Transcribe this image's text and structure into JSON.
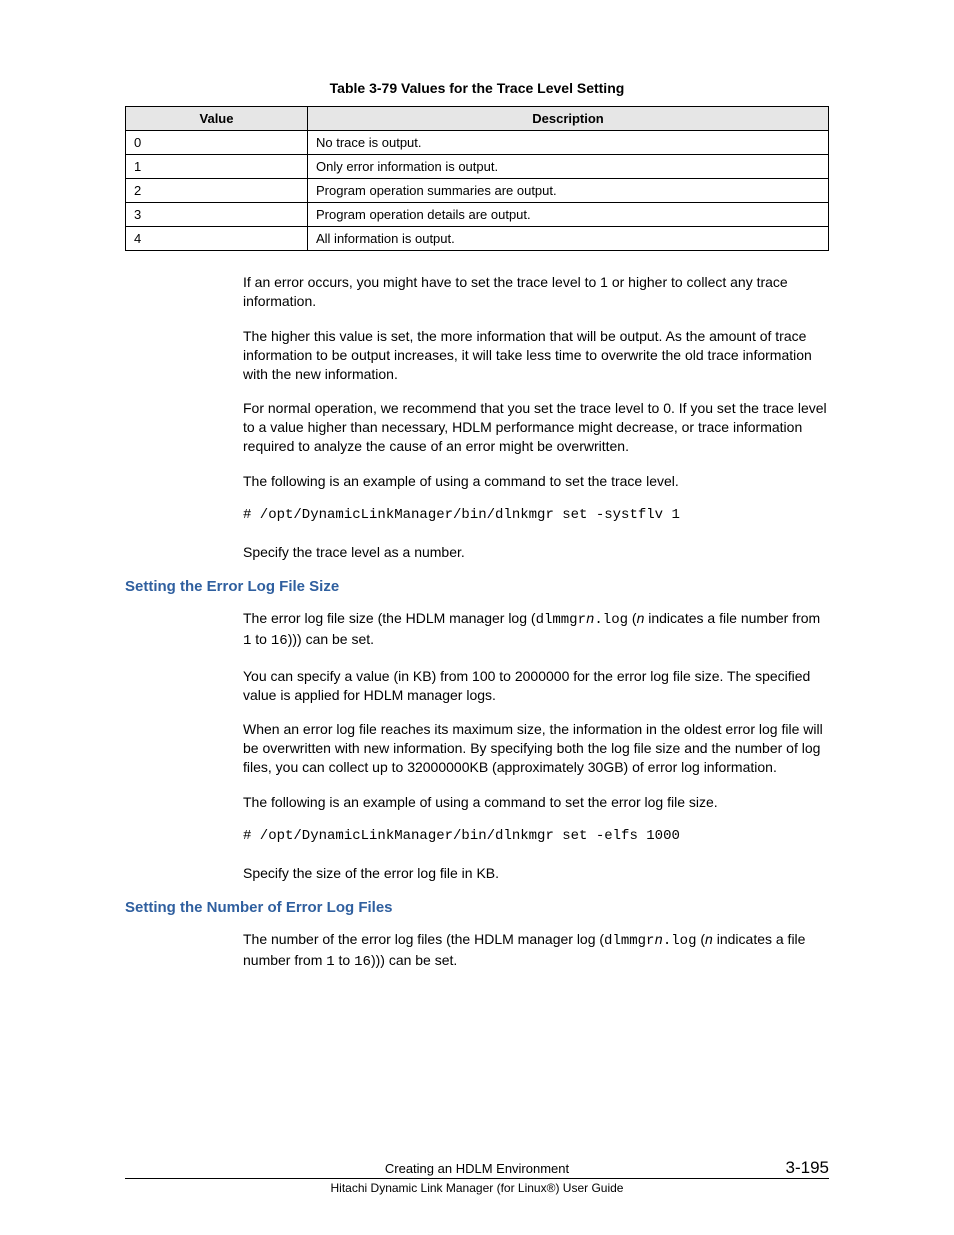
{
  "table_caption": "Table 3-79 Values for the Trace Level Setting",
  "table": {
    "headers": {
      "value": "Value",
      "description": "Description"
    },
    "rows": [
      {
        "value": "0",
        "description": "No trace is output."
      },
      {
        "value": "1",
        "description": "Only error information is output."
      },
      {
        "value": "2",
        "description": "Program operation summaries are output."
      },
      {
        "value": "3",
        "description": "Program operation details are output."
      },
      {
        "value": "4",
        "description": "All information is output."
      }
    ]
  },
  "p1": "If an error occurs, you might have to set the trace level to 1 or higher to collect any trace information.",
  "p2": "The higher this value is set, the more information that will be output. As the amount of trace information to be output increases, it will take less time to overwrite the old trace information with the new information.",
  "p3": "For normal operation, we recommend that you set the trace level to 0. If you set the trace level to a value higher than necessary, HDLM performance might decrease, or trace information required to analyze the cause of an error might be overwritten.",
  "p4": "The following is an example of using a command to set the trace level.",
  "cmd1": "# /opt/DynamicLinkManager/bin/dlnkmgr set -systflv 1",
  "p5": "Specify the trace level as a number.",
  "heading1": "Setting the Error Log File Size",
  "p6a": "The error log file size (the HDLM manager log (",
  "p6b": "dlmmgr",
  "p6c": "n",
  "p6d": ".log",
  "p6e": " (",
  "p6f": "n",
  "p6g": " indicates a file number from ",
  "p6h": "1",
  "p6i": " to ",
  "p6j": "16",
  "p6k": "))) can be set.",
  "p7": "You can specify a value (in KB) from 100 to 2000000 for the error log file size. The specified value is applied for HDLM manager logs.",
  "p8": "When an error log file reaches its maximum size, the information in the oldest error log file will be overwritten with new information. By specifying both the log file size and the number of log files, you can collect up to 32000000KB (approximately 30GB) of error log information.",
  "p9": "The following is an example of using a command to set the error log file size.",
  "cmd2": "# /opt/DynamicLinkManager/bin/dlnkmgr set -elfs 1000",
  "p10": "Specify the size of the error log file in KB.",
  "heading2": "Setting the Number of Error Log Files",
  "p11a": "The number of the error log files (the HDLM manager log (",
  "p11b": "dlmmgr",
  "p11c": "n",
  "p11d": ".log",
  "p11e": " (",
  "p11f": "n",
  "p11g": " indicates a file number from ",
  "p11h": "1",
  "p11i": " to ",
  "p11j": "16",
  "p11k": "))) can be set.",
  "footer": {
    "chapter": "Creating an HDLM Environment",
    "page": "3-195",
    "book": "Hitachi Dynamic Link Manager (for Linux®) User Guide"
  }
}
